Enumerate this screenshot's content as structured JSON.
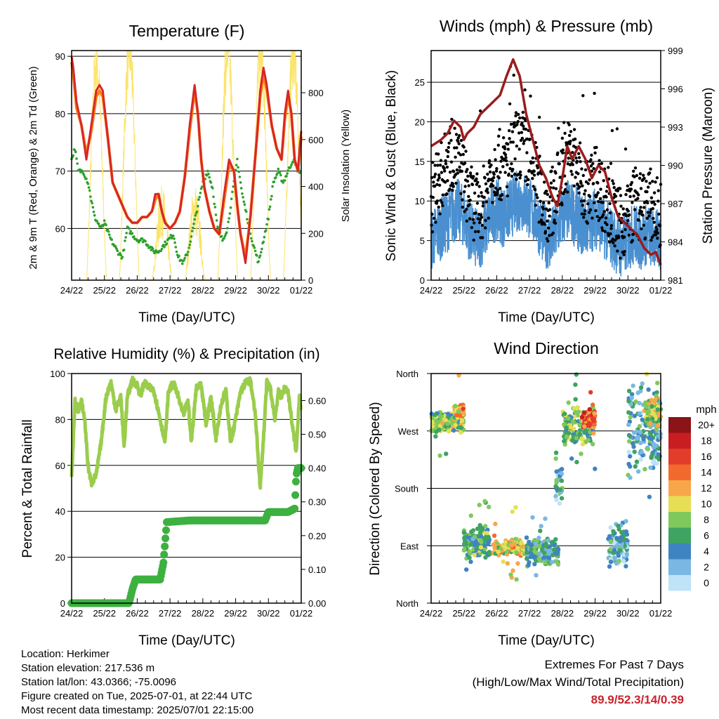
{
  "chart_data": [
    {
      "type": "line",
      "title": "Temperature (F)",
      "xlabel": "Time (Day/UTC)",
      "ylabel": "2m & 9m T (Red, Orange) & 2m Td (Green)",
      "y2label": "Solar Insolation (Yellow)",
      "x_ticks": [
        "24/22",
        "25/22",
        "26/22",
        "27/22",
        "28/22",
        "29/22",
        "30/22",
        "01/22"
      ],
      "xlim": [
        0,
        7
      ],
      "ylim": [
        51,
        91
      ],
      "y_ticks": [
        60,
        70,
        80,
        90
      ],
      "y2lim": [
        0,
        980
      ],
      "y2_ticks": [
        0,
        200,
        400,
        600,
        800
      ],
      "grid": "horizontal",
      "series": [
        {
          "color": "#d62728",
          "x": [
            0,
            0.05,
            0.15,
            0.3,
            0.45,
            0.6,
            0.75,
            0.85,
            0.95,
            1.1,
            1.25,
            1.4,
            1.55,
            1.7,
            1.85,
            2.0,
            2.15,
            2.3,
            2.45,
            2.55,
            2.65,
            2.75,
            2.85,
            3.0,
            3.15,
            3.3,
            3.45,
            3.6,
            3.75,
            3.85,
            3.95,
            4.05,
            4.2,
            4.35,
            4.5,
            4.65,
            4.8,
            4.95,
            5.05,
            5.15,
            5.3,
            5.45,
            5.55,
            5.65,
            5.75,
            5.85,
            5.95,
            6.1,
            6.25,
            6.4,
            6.5,
            6.6,
            6.7,
            6.8,
            6.9,
            6.95,
            7.0
          ],
          "values": [
            90,
            88,
            82,
            78,
            72,
            78,
            84,
            85,
            84,
            76,
            68,
            66,
            64,
            62,
            61,
            61,
            62,
            62,
            63,
            66,
            66,
            63,
            61,
            60,
            61,
            63,
            69,
            78,
            85,
            80,
            72,
            67,
            63,
            60,
            59,
            66,
            72,
            70,
            64,
            59,
            54,
            62,
            69,
            76,
            84,
            88,
            85,
            78,
            74,
            72,
            80,
            84,
            80,
            72,
            70,
            74,
            77
          ]
        },
        {
          "color": "#ff7f0e",
          "x": [
            0,
            0.05,
            0.15,
            0.3,
            0.45,
            0.6,
            0.75,
            0.85,
            0.95,
            1.1,
            1.25,
            1.4,
            1.55,
            1.7,
            1.85,
            2.0,
            2.15,
            2.3,
            2.45,
            2.55,
            2.65,
            2.75,
            2.85,
            3.0,
            3.15,
            3.3,
            3.45,
            3.6,
            3.75,
            3.85,
            3.95,
            4.05,
            4.2,
            4.35,
            4.5,
            4.65,
            4.8,
            4.95,
            5.05,
            5.15,
            5.3,
            5.45,
            5.55,
            5.65,
            5.75,
            5.85,
            5.95,
            6.1,
            6.25,
            6.4,
            6.5,
            6.6,
            6.7,
            6.8,
            6.9,
            6.95,
            7.0
          ],
          "values": [
            89,
            87,
            81,
            78,
            73,
            77,
            83,
            84,
            83,
            76,
            68,
            66,
            64,
            62,
            61,
            61,
            62,
            62,
            63,
            65,
            66,
            63,
            61,
            60,
            61,
            63,
            69,
            77,
            84,
            80,
            72,
            67,
            63,
            60,
            59,
            65,
            71,
            70,
            64,
            59,
            55,
            62,
            69,
            76,
            83,
            87,
            84,
            78,
            74,
            72,
            79,
            83,
            80,
            72,
            70,
            73,
            76
          ]
        },
        {
          "color": "#2ca02c",
          "x": [
            0,
            0.1,
            0.2,
            0.35,
            0.5,
            0.7,
            0.9,
            1.0,
            1.2,
            1.4,
            1.55,
            1.7,
            1.85,
            2.0,
            2.2,
            2.35,
            2.5,
            2.65,
            2.8,
            2.95,
            3.1,
            3.25,
            3.4,
            3.55,
            3.7,
            3.85,
            4.0,
            4.15,
            4.3,
            4.45,
            4.6,
            4.75,
            4.9,
            5.05,
            5.2,
            5.35,
            5.5,
            5.6,
            5.7,
            5.85,
            6.0,
            6.15,
            6.3,
            6.45,
            6.6,
            6.75,
            6.9,
            7.0
          ],
          "values": [
            72,
            74,
            70,
            70,
            68,
            62,
            60,
            61,
            58,
            56,
            55,
            60,
            59,
            58,
            58,
            57,
            56,
            56,
            57,
            58,
            59,
            55,
            54,
            56,
            60,
            64,
            68,
            70,
            67,
            60,
            58,
            60,
            66,
            72,
            66,
            62,
            58,
            56,
            54,
            58,
            62,
            68,
            70,
            68,
            70,
            72,
            70,
            70
          ]
        }
      ],
      "series2": {
        "color": "#fce46a",
        "name": "Solar Insolation",
        "days": [
          0,
          1,
          2,
          3,
          4,
          5,
          6
        ],
        "peaks": [
          920,
          980,
          290,
          300,
          980,
          970,
          960
        ]
      }
    },
    {
      "type": "scatter",
      "title": "Winds (mph) & Pressure (mb)",
      "xlabel": "Time (Day/UTC)",
      "ylabel": "Sonic Wind & Gust (Blue, Black)",
      "y2label": "Station Pressure (Maroon)",
      "x_ticks": [
        "24/22",
        "25/22",
        "26/22",
        "27/22",
        "28/22",
        "29/22",
        "30/22",
        "01/22"
      ],
      "xlim": [
        0,
        7
      ],
      "ylim": [
        0,
        29
      ],
      "y_ticks": [
        0,
        5,
        10,
        15,
        20,
        25
      ],
      "y2lim": [
        981,
        999
      ],
      "y2_ticks": [
        981,
        984,
        987,
        990,
        993,
        996,
        999
      ],
      "grid": "horizontal",
      "wind_level": {
        "x": [
          0,
          0.2,
          0.4,
          0.6,
          0.8,
          1.0,
          1.2,
          1.4,
          1.6,
          1.8,
          2.0,
          2.2,
          2.4,
          2.6,
          2.8,
          3.0,
          3.2,
          3.4,
          3.6,
          3.8,
          4.0,
          4.2,
          4.4,
          4.6,
          4.8,
          5.0,
          5.2,
          5.4,
          5.6,
          5.8,
          6.0,
          6.2,
          6.4,
          6.6,
          6.8,
          7.0
        ],
        "values": [
          5,
          6,
          7,
          8,
          9,
          8,
          6,
          5,
          6,
          8,
          9,
          8,
          9,
          10,
          10,
          9,
          8,
          6,
          5,
          6,
          8,
          9,
          8,
          7,
          7,
          8,
          7,
          6,
          5,
          4,
          5,
          6,
          5,
          6,
          5,
          5
        ]
      },
      "gust_level": {
        "x": [
          0,
          0.2,
          0.4,
          0.6,
          0.8,
          1.0,
          1.2,
          1.4,
          1.6,
          1.8,
          2.0,
          2.2,
          2.4,
          2.6,
          2.8,
          3.0,
          3.2,
          3.4,
          3.6,
          3.8,
          4.0,
          4.2,
          4.4,
          4.6,
          4.8,
          5.0,
          5.2,
          5.4,
          5.6,
          5.8,
          6.0,
          6.2,
          6.4,
          6.6,
          6.8,
          7.0
        ],
        "values": [
          10,
          12,
          14,
          16,
          15,
          13,
          10,
          9,
          10,
          13,
          15,
          14,
          15,
          17,
          17,
          15,
          13,
          10,
          9,
          11,
          14,
          16,
          15,
          12,
          11,
          13,
          11,
          9,
          8,
          7,
          8,
          10,
          9,
          10,
          9,
          8
        ]
      },
      "pressure": {
        "color": "#9b1c1c",
        "x": [
          0,
          0.3,
          0.5,
          0.7,
          0.9,
          1.0,
          1.1,
          1.3,
          1.5,
          1.7,
          1.9,
          2.1,
          2.3,
          2.5,
          2.7,
          2.9,
          3.1,
          3.3,
          3.5,
          3.7,
          3.85,
          4.0,
          4.15,
          4.3,
          4.5,
          4.7,
          4.9,
          5.1,
          5.3,
          5.5,
          5.7,
          5.9,
          6.1,
          6.3,
          6.5,
          6.7,
          6.85,
          7.0
        ],
        "values": [
          991.5,
          992,
          992.5,
          993.5,
          993,
          992,
          992.5,
          993,
          994,
          994.5,
          995,
          995.5,
          997,
          998.3,
          997,
          994,
          992,
          990,
          989,
          987.5,
          986.8,
          989,
          991.5,
          990.5,
          991.5,
          990.5,
          989,
          990,
          989.5,
          987.5,
          986,
          985.5,
          985,
          984.5,
          983.5,
          983,
          983.2,
          982.2
        ]
      }
    },
    {
      "type": "line",
      "title": "Relative Humidity (%) & Precipitation (in)",
      "xlabel": "Time (Day/UTC)",
      "ylabel": "Percent & Total Rainfall",
      "x_ticks": [
        "24/22",
        "25/22",
        "26/22",
        "27/22",
        "28/22",
        "29/22",
        "30/22",
        "01/22"
      ],
      "xlim": [
        0,
        7
      ],
      "ylim": [
        0,
        100
      ],
      "y_ticks": [
        0,
        20,
        40,
        60,
        80,
        100
      ],
      "y2lim": [
        0,
        0.68
      ],
      "y2_ticks": [
        "0.00",
        "0.10",
        "0.20",
        "0.30",
        "0.40",
        "0.50",
        "0.60"
      ],
      "grid": "horizontal",
      "humidity": {
        "color": "#9acd4c",
        "x": [
          0,
          0.1,
          0.2,
          0.3,
          0.4,
          0.5,
          0.6,
          0.75,
          0.9,
          1.05,
          1.2,
          1.35,
          1.5,
          1.6,
          1.7,
          1.85,
          2.0,
          2.1,
          2.2,
          2.35,
          2.5,
          2.7,
          2.85,
          2.95,
          3.1,
          3.25,
          3.4,
          3.55,
          3.65,
          3.8,
          3.95,
          4.1,
          4.25,
          4.4,
          4.55,
          4.7,
          4.85,
          5.0,
          5.15,
          5.3,
          5.45,
          5.6,
          5.75,
          5.85,
          5.95,
          6.05,
          6.2,
          6.3,
          6.4,
          6.5,
          6.6,
          6.75,
          6.85,
          6.95,
          7.0
        ],
        "values": [
          54,
          88,
          84,
          88,
          80,
          60,
          52,
          56,
          70,
          90,
          96,
          84,
          90,
          68,
          90,
          97,
          95,
          90,
          96,
          94,
          93,
          80,
          70,
          92,
          96,
          90,
          82,
          88,
          70,
          94,
          95,
          78,
          90,
          72,
          86,
          93,
          70,
          80,
          92,
          96,
          97,
          82,
          50,
          72,
          96,
          94,
          80,
          92,
          90,
          94,
          92,
          75,
          66,
          92,
          82
        ]
      },
      "precip": {
        "color": "#3db040",
        "x": [
          0,
          1.75,
          1.85,
          1.95,
          2.7,
          2.8,
          2.9,
          3.6,
          4.5,
          5.5,
          5.9,
          6.0,
          6.6,
          6.8,
          6.85,
          6.9,
          7.0
        ],
        "values": [
          0,
          0,
          0.04,
          0.07,
          0.07,
          0.12,
          0.24,
          0.245,
          0.245,
          0.245,
          0.245,
          0.27,
          0.27,
          0.28,
          0.38,
          0.4,
          0.4
        ]
      }
    },
    {
      "type": "scatter",
      "title": "Wind Direction",
      "xlabel": "Time (Day/UTC)",
      "ylabel": "Direction (Colored By Speed)",
      "x_ticks": [
        "24/22",
        "25/22",
        "26/22",
        "27/22",
        "28/22",
        "29/22",
        "30/22",
        "01/22"
      ],
      "xlim": [
        0,
        7
      ],
      "ylim": [
        0,
        360
      ],
      "y_ticks": [
        "North",
        "East",
        "South",
        "West",
        "North"
      ],
      "grid": "horizontal",
      "clusters": [
        {
          "x0": 0.0,
          "x1": 1.0,
          "dir": 285,
          "spread": 12,
          "speed": 8
        },
        {
          "x0": 0.7,
          "x1": 1.0,
          "dir": 300,
          "spread": 10,
          "speed": 12
        },
        {
          "x0": 1.0,
          "x1": 1.8,
          "dir": 95,
          "spread": 20,
          "speed": 6
        },
        {
          "x0": 1.9,
          "x1": 2.9,
          "dir": 88,
          "spread": 10,
          "speed": 10
        },
        {
          "x0": 2.9,
          "x1": 3.9,
          "dir": 80,
          "spread": 18,
          "speed": 5
        },
        {
          "x0": 3.8,
          "x1": 4.0,
          "dir": 190,
          "spread": 30,
          "speed": 4
        },
        {
          "x0": 4.0,
          "x1": 5.0,
          "dir": 280,
          "spread": 25,
          "speed": 7
        },
        {
          "x0": 4.6,
          "x1": 5.0,
          "dir": 290,
          "spread": 12,
          "speed": 14
        },
        {
          "x0": 5.4,
          "x1": 6.0,
          "dir": 90,
          "spread": 30,
          "speed": 4
        },
        {
          "x0": 6.0,
          "x1": 7.0,
          "dir": 270,
          "spread": 60,
          "speed": 4
        },
        {
          "x0": 6.5,
          "x1": 7.0,
          "dir": 300,
          "spread": 20,
          "speed": 9
        }
      ],
      "colorbar": {
        "title": "mph",
        "labels": [
          "20+",
          "18",
          "16",
          "14",
          "12",
          "10",
          "8",
          "6",
          "4",
          "2",
          "0"
        ],
        "colors": [
          "#8b1418",
          "#c81e22",
          "#e23c2a",
          "#f26a2e",
          "#f8a64a",
          "#e6df55",
          "#7fc95c",
          "#3fa361",
          "#3f84c2",
          "#7ab8e3",
          "#bfe3f7"
        ]
      }
    }
  ],
  "station_info": [
    "Location: Herkimer",
    "Station elevation: 217.536 m",
    "Station lat/lon: 43.0366; -75.0096",
    "Figure created on Tue, 2025-07-01, at 22:44 UTC",
    "Most recent data timestamp: 2025/07/01 22:15:00"
  ],
  "extremes": {
    "line1": "Extremes For Past 7 Days",
    "line2": "(High/Low/Max Wind/Total Precipitation)",
    "values": "89.9/52.3/14/0.39"
  }
}
